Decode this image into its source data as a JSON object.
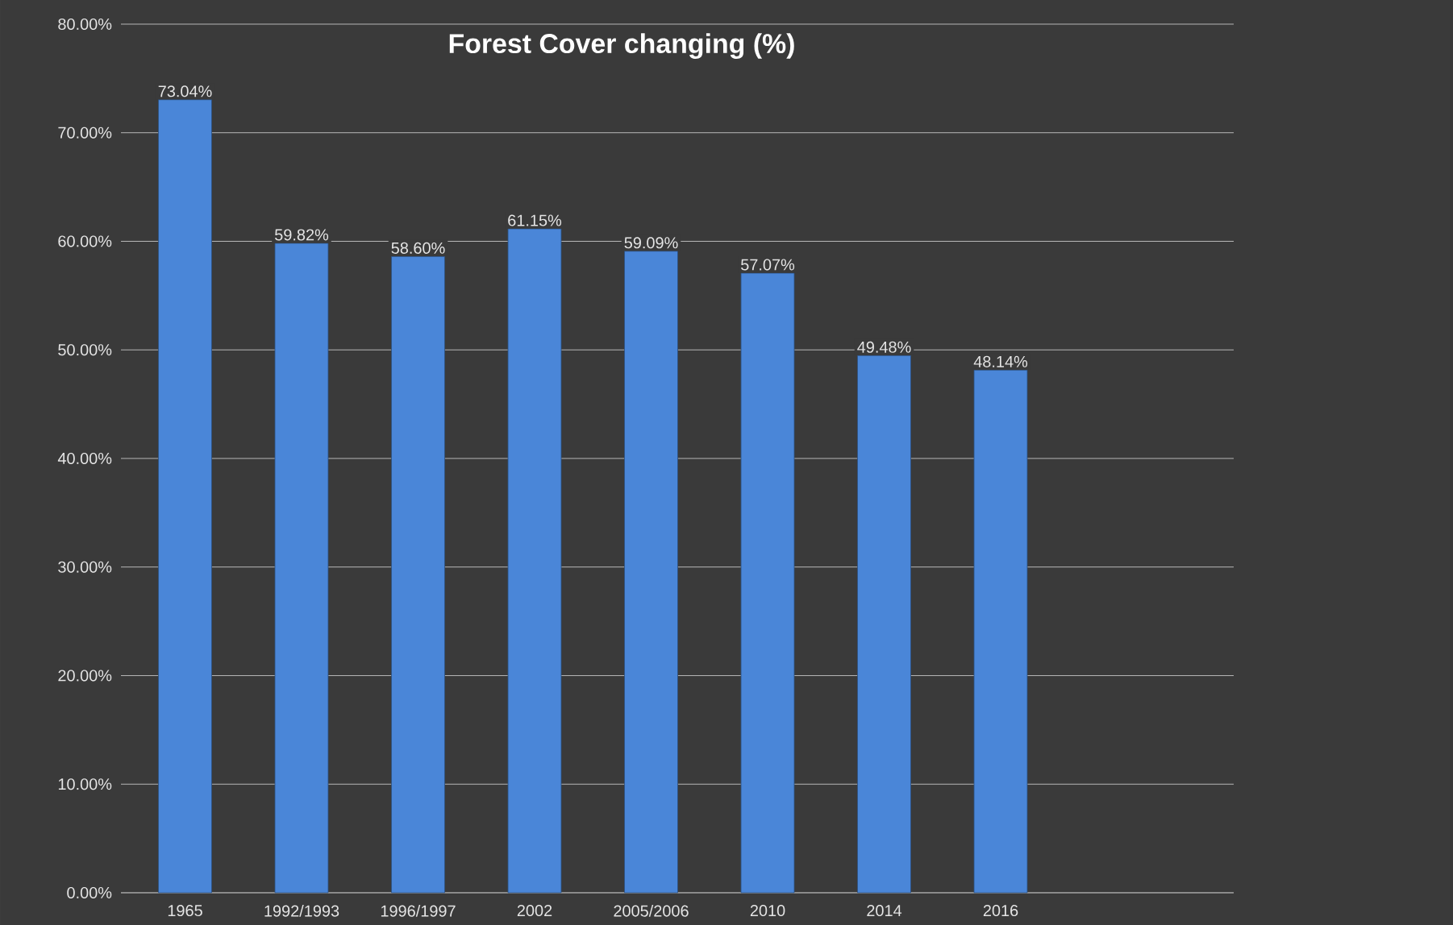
{
  "chart_data": {
    "type": "bar",
    "title": "Forest Cover changing (%)",
    "categories": [
      "1965",
      "1992/1993",
      "1996/1997",
      "2002",
      "2005/2006",
      "2010",
      "2014",
      "2016"
    ],
    "values": [
      73.04,
      59.82,
      58.6,
      61.15,
      59.09,
      57.07,
      49.48,
      48.14
    ],
    "value_labels": [
      "73.04%",
      "59.82%",
      "58.60%",
      "61.15%",
      "59.09%",
      "57.07%",
      "49.48%",
      "48.14%"
    ],
    "color": "#4a86d8",
    "ylim": [
      0,
      80
    ],
    "yticks": [
      {
        "value": 0,
        "label": "0.00%"
      },
      {
        "value": 10,
        "label": "10.00%"
      },
      {
        "value": 20,
        "label": "20.00%"
      },
      {
        "value": 30,
        "label": "30.00%"
      },
      {
        "value": 40,
        "label": "40.00%"
      },
      {
        "value": 50,
        "label": "50.00%"
      },
      {
        "value": 60,
        "label": "60.00%"
      },
      {
        "value": 70,
        "label": "70.00%"
      },
      {
        "value": 80,
        "label": "80.00%"
      }
    ],
    "grid": "y"
  }
}
